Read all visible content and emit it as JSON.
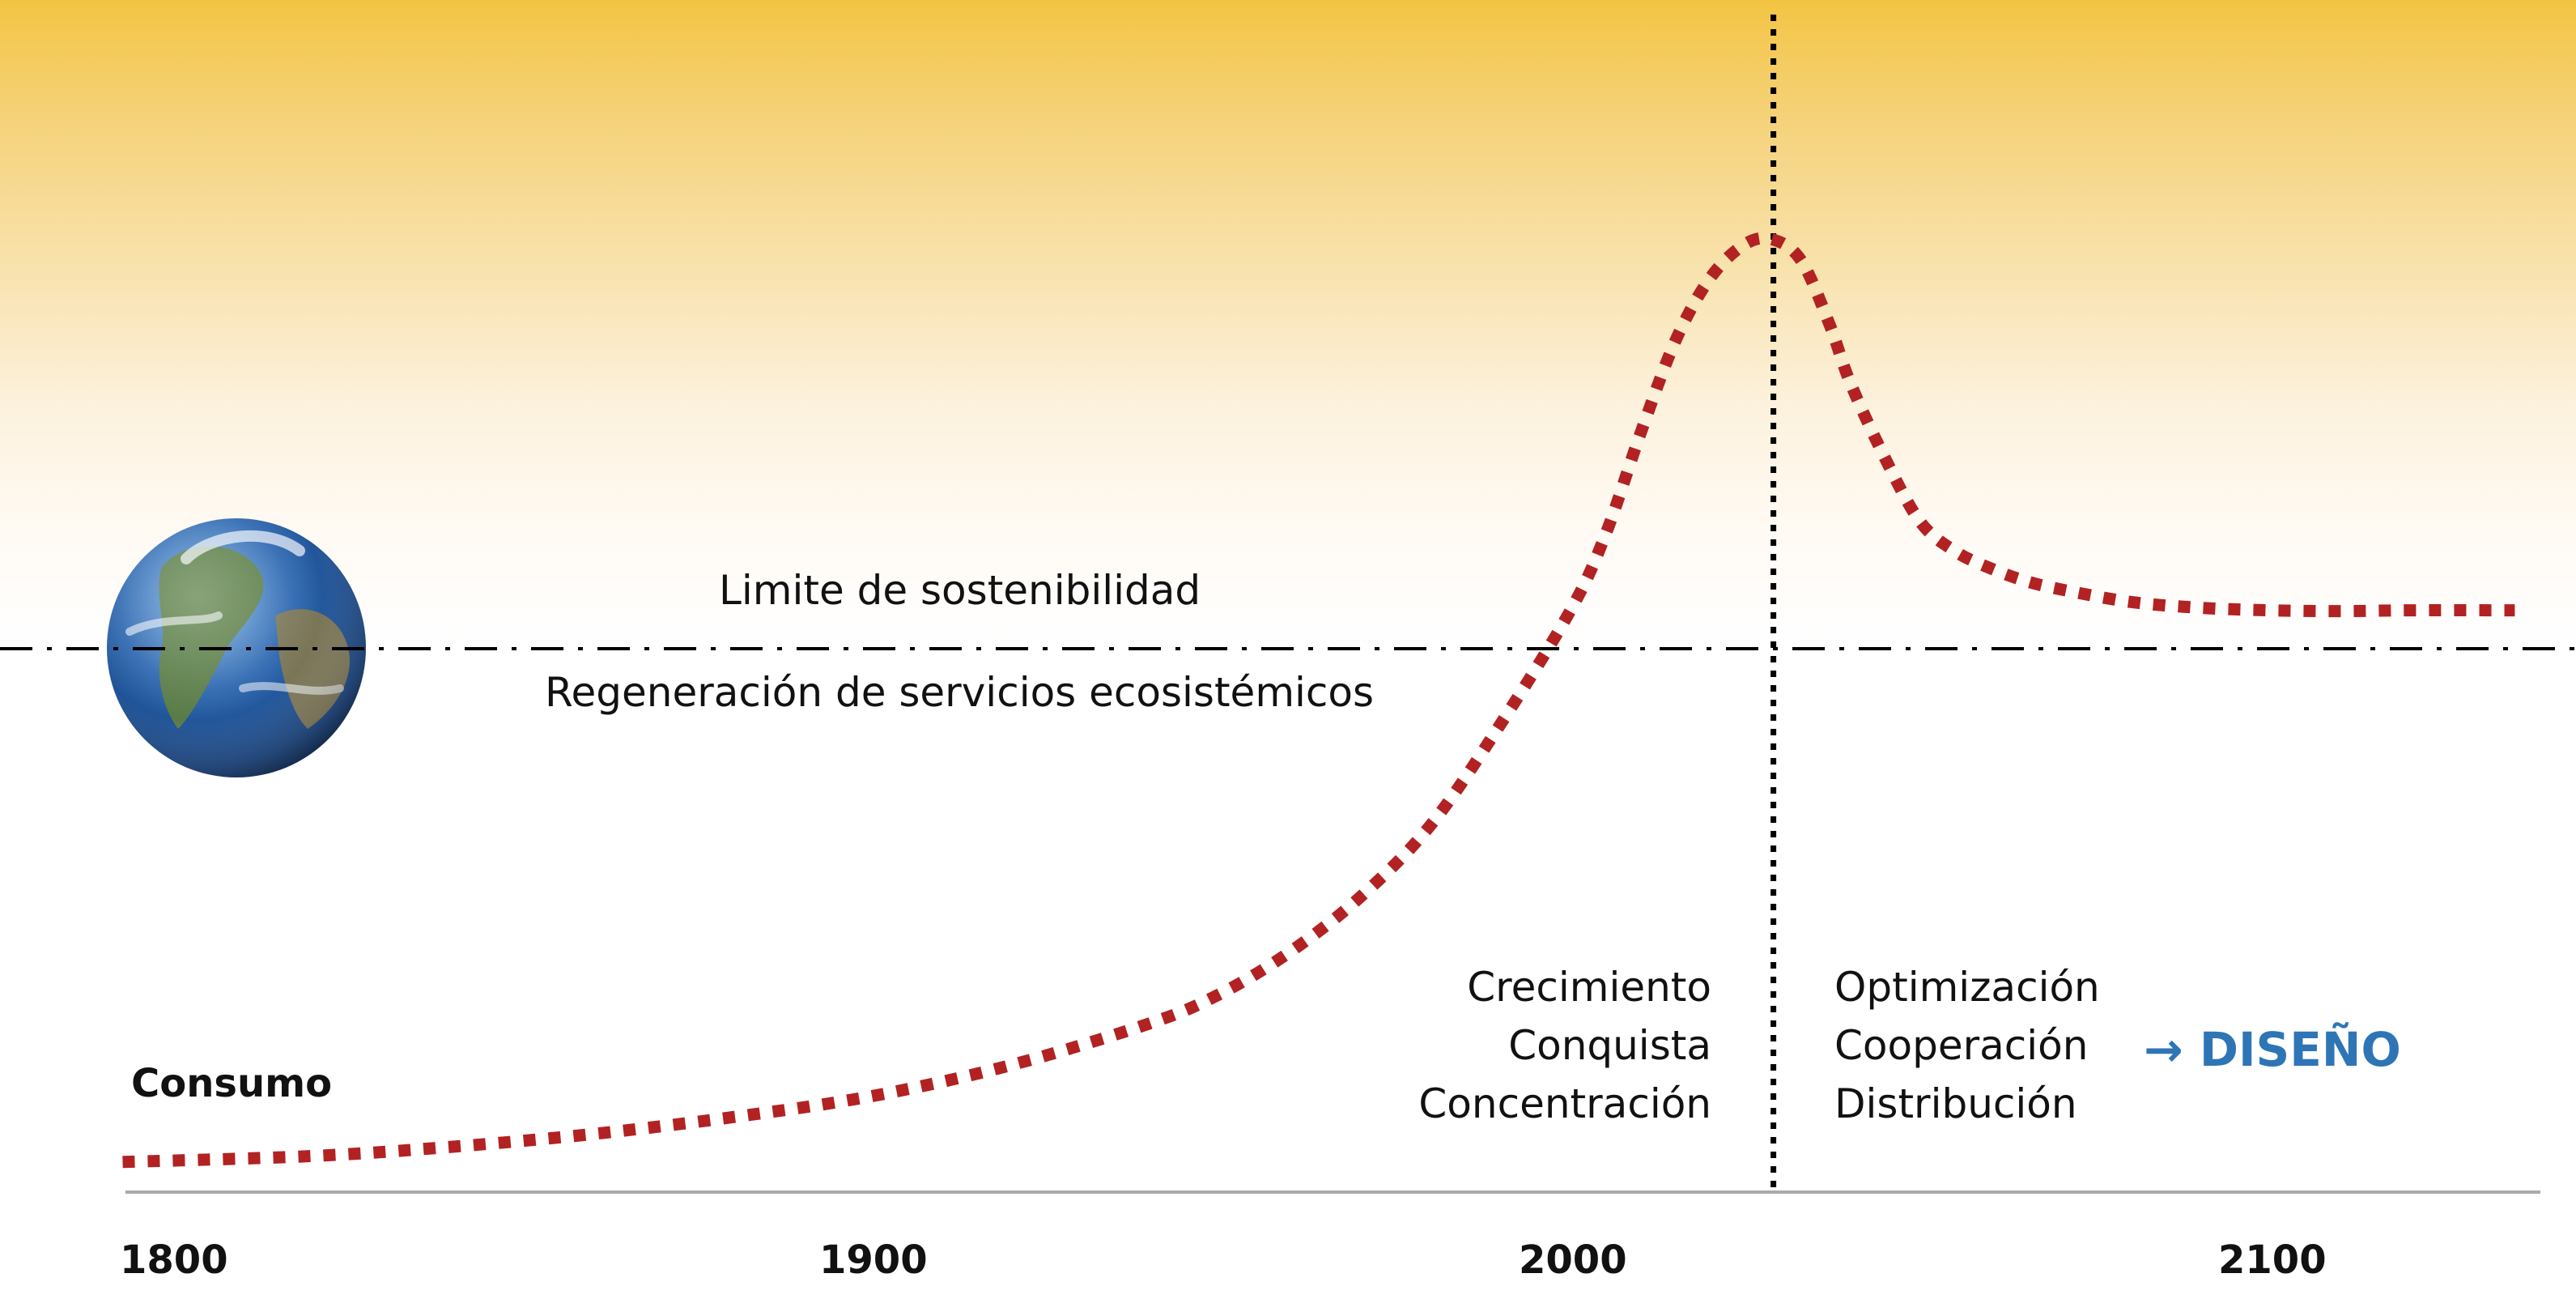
{
  "labels": {
    "limit_top": "Limite de sostenibilidad",
    "limit_bottom": "Regeneración de servicios ecosistémicos",
    "y_label": "Consumo",
    "before": [
      "Crecimiento",
      "Conquista",
      "Concentración"
    ],
    "after": [
      "Optimización",
      "Cooperación",
      "Distribución"
    ],
    "design_arrow": "→",
    "design": "DISEÑO"
  },
  "colors": {
    "curve": "#b22222",
    "design_text": "#2e75b6",
    "threshold_line": "#000000",
    "axis": "#aaaaaa",
    "sky_top": "#f3c443"
  },
  "icons": {
    "earth": "earth-globe-icon"
  },
  "chart_data": {
    "type": "line",
    "x_ticks": [
      1800,
      1900,
      2000,
      2100
    ],
    "x_tick_labels": [
      "1800",
      "1900",
      "2000",
      "2100"
    ],
    "xlim": [
      1793,
      2135
    ],
    "sustainability_limit": 70,
    "peak_year": 2029,
    "series": [
      {
        "x": [
          1793,
          1820,
          1840,
          1860,
          1880,
          1900,
          1920,
          1940,
          1950,
          1960,
          1970,
          1980,
          1990,
          2000,
          2005,
          2010,
          2015,
          2020,
          2025,
          2029,
          2033,
          2037,
          2040,
          2045,
          2050,
          2055,
          2060,
          2065,
          2070,
          2080,
          2090,
          2100,
          2110,
          2120,
          2135
        ],
        "y": [
          0.5,
          1.2,
          2.3,
          3.8,
          5.8,
          8.3,
          12,
          17,
          20.5,
          25.5,
          32,
          40.5,
          52.5,
          66,
          75,
          87,
          98,
          105.5,
          109.5,
          110,
          107.5,
          100,
          93,
          84,
          76.5,
          73,
          71,
          69.5,
          68.5,
          67,
          66.3,
          66,
          65.9,
          66,
          66
        ]
      }
    ]
  }
}
